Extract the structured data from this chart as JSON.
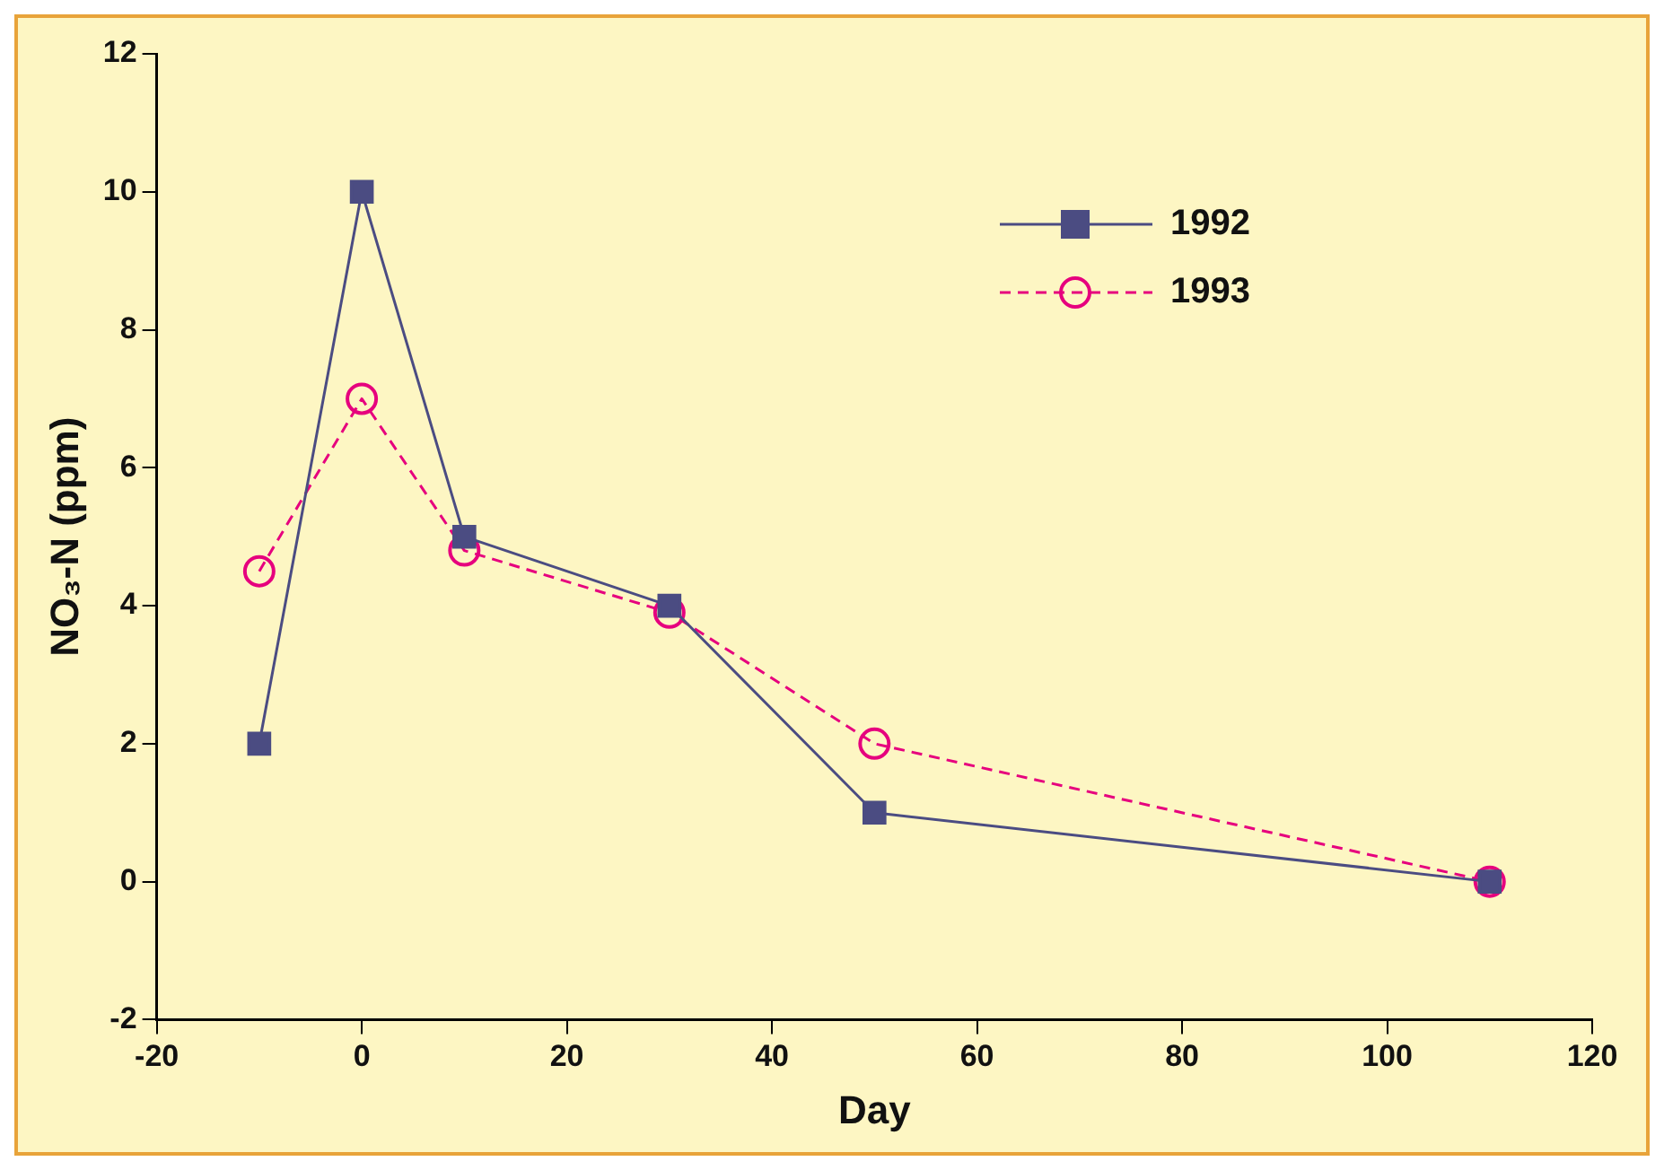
{
  "chart_data": {
    "type": "line",
    "xlabel": "Day",
    "ylabel": "NO₃-N (ppm)",
    "xlim": [
      -20,
      120
    ],
    "xticks": [
      -20,
      0,
      20,
      40,
      60,
      80,
      100,
      120
    ],
    "ylim": [
      -2,
      12
    ],
    "yticks": [
      -2,
      0,
      2,
      4,
      6,
      8,
      10,
      12
    ],
    "grid": false,
    "legend": "top right",
    "series": [
      {
        "name": "1992",
        "color": "#4b4c82",
        "marker": "square",
        "line_style": "solid",
        "x": [
          -10,
          0,
          10,
          30,
          50,
          110
        ],
        "values": [
          2,
          10,
          5,
          4,
          1,
          0
        ]
      },
      {
        "name": "1993",
        "color": "#e6007e",
        "marker": "circle",
        "line_style": "dashed",
        "x": [
          -10,
          0,
          10,
          30,
          50,
          110
        ],
        "values": [
          4.5,
          7,
          4.8,
          3.9,
          2,
          0
        ]
      }
    ]
  }
}
